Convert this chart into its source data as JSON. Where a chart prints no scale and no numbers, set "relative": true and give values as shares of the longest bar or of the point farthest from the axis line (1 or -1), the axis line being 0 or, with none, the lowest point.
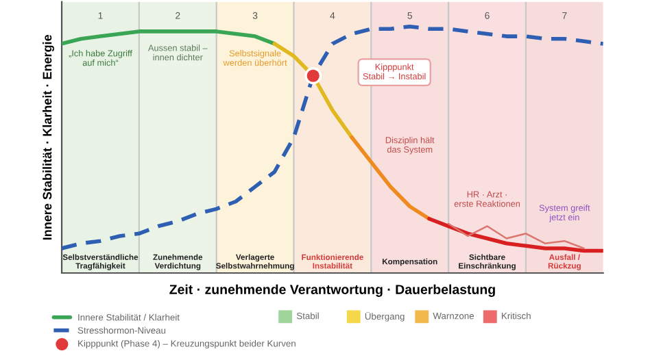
{
  "chart_data": {
    "type": "line",
    "relative": true,
    "ylabel": "Innere Stabilität · Klarheit · Energie",
    "xlabel": "Zeit · zunehmende Verantwortung · Dauerbelastung",
    "categories": [
      null,
      null,
      "1",
      null,
      null,
      null,
      "2",
      null,
      null,
      null,
      "3",
      null,
      null,
      null,
      "4",
      null,
      null,
      null,
      "5",
      null,
      null,
      null,
      "6",
      null,
      null,
      null,
      "7",
      null,
      null
    ],
    "series": [
      {
        "name": "Innere Stabilität / Klarheit",
        "color": "#3aa655",
        "values": [
          0.93,
          0.95,
          0.96,
          0.97,
          0.98,
          0.98,
          0.98,
          0.98,
          0.98,
          0.97,
          0.96,
          0.93,
          null,
          null,
          null,
          null,
          null,
          null,
          null,
          null,
          null,
          null,
          null,
          null,
          null,
          null,
          null,
          null,
          null
        ]
      },
      {
        "color": "#e0b820",
        "values": [
          null,
          null,
          null,
          null,
          null,
          null,
          null,
          null,
          null,
          null,
          null,
          0.93,
          0.88,
          0.8,
          0.66,
          0.55,
          null,
          null,
          null,
          null,
          null,
          null,
          null,
          null,
          null,
          null,
          null,
          null,
          null
        ]
      },
      {
        "color": "#ef8a20",
        "values": [
          null,
          null,
          null,
          null,
          null,
          null,
          null,
          null,
          null,
          null,
          null,
          null,
          null,
          null,
          null,
          0.55,
          0.45,
          0.35,
          0.27,
          0.22,
          null,
          null,
          null,
          null,
          null,
          null,
          null,
          null,
          null
        ]
      },
      {
        "color": "#d92020",
        "values": [
          null,
          null,
          null,
          null,
          null,
          null,
          null,
          null,
          null,
          null,
          null,
          null,
          null,
          null,
          null,
          null,
          null,
          null,
          null,
          0.22,
          0.19,
          0.16,
          0.14,
          0.12,
          0.11,
          0.1,
          0.1,
          0.09,
          0.09
        ]
      },
      {
        "name": "Stresshormon-Niveau",
        "color": "#2f5fb3",
        "line_style": "dashed",
        "values": [
          0.1,
          0.12,
          0.13,
          0.15,
          0.16,
          0.19,
          0.21,
          0.24,
          0.26,
          0.29,
          0.35,
          0.41,
          0.55,
          0.8,
          0.93,
          0.97,
          0.99,
          0.99,
          1.0,
          0.99,
          0.99,
          0.98,
          0.97,
          0.96,
          0.96,
          0.95,
          0.95,
          0.94,
          0.93
        ]
      },
      {
        "color": "#d9776f",
        "values": [
          null,
          null,
          null,
          null,
          null,
          null,
          null,
          null,
          null,
          null,
          null,
          null,
          null,
          null,
          null,
          null,
          null,
          null,
          null,
          null,
          0.2,
          0.15,
          0.19,
          0.14,
          0.16,
          0.12,
          0.13,
          0.1,
          null
        ]
      },
      {
        "name": "Kipppunkt (Phase 4) – Kreuzungspunkt beider Kurven",
        "type": "scatter",
        "marker": "circle",
        "color": "#e03a3a",
        "values": [
          null,
          null,
          null,
          null,
          null,
          null,
          null,
          null,
          null,
          null,
          null,
          null,
          null,
          0.8,
          null,
          null,
          null,
          null,
          null,
          null,
          null,
          null,
          null,
          null,
          null,
          null,
          null,
          null,
          null
        ]
      }
    ],
    "grid": "x",
    "annotations": [
      "Selbstverständliche\nTragfähigkeit",
      "Zunehmende\nVerdichtung",
      "Verlagerte\nSelbstwahrnehmung",
      "Funktionierende\nInstabilität",
      "Kompensation",
      "Sichtbare\nEinschränkung",
      "Ausfall /\nRückzug",
      "„Ich habe Zugriff\nauf mich“",
      "Aussen stabil –\ninnen dichter",
      "Selbstsignale\nwerden überhört",
      "Kipppunkt\nStabil → Instabil",
      "Disziplin hält\ndas System",
      "HR · Arzt ·\nerste Reaktionen",
      "System greift\njetzt ein",
      "Stabil",
      "Übergang",
      "Warnzone",
      "Kritisch"
    ],
    "legend": "bottom"
  }
}
